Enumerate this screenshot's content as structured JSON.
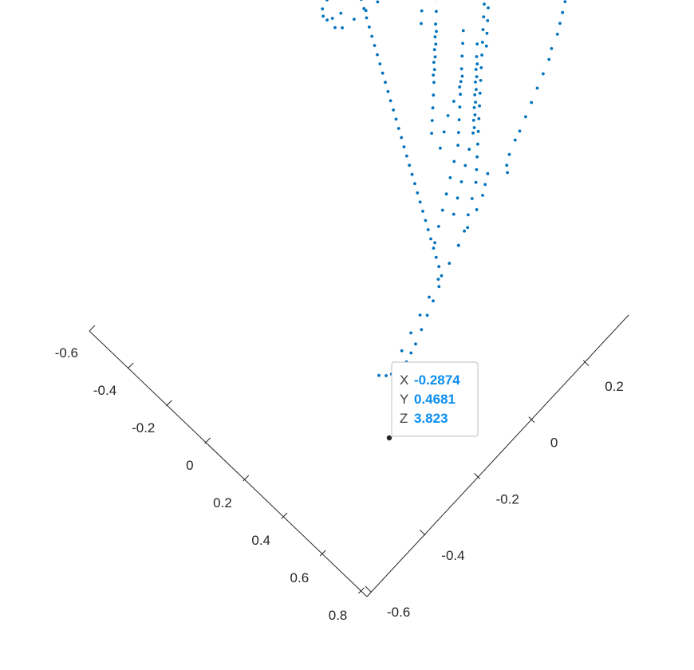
{
  "chart_data": {
    "type": "scatter",
    "projection": "3d",
    "title": "",
    "xlabel": "",
    "ylabel": "",
    "zlabel": "",
    "marker_color": "#0072BD",
    "grid": false,
    "axes": {
      "left_axis": {
        "ticks": [
          "-0.6",
          "-0.4",
          "-0.2",
          "0",
          "0.2",
          "0.4",
          "0.6",
          "0.8"
        ],
        "range": [
          -0.6,
          0.8
        ]
      },
      "right_axis": {
        "ticks": [
          "-0.6",
          "-0.4",
          "-0.2",
          "0",
          "0.2"
        ],
        "range": [
          -0.6,
          0.2
        ]
      }
    },
    "datatip": {
      "rows": [
        {
          "key": "X",
          "value": "-0.2874"
        },
        {
          "key": "Y",
          "value": "0.4681"
        },
        {
          "key": "Z",
          "value": "3.823"
        }
      ],
      "key_color": "#404040",
      "value_color": "#0A8EEF",
      "anchor_color": "#262626"
    },
    "points": [
      [
        0.42,
        0.06
      ],
      [
        0.4,
        0.07
      ],
      [
        0.38,
        0.09
      ],
      [
        0.36,
        0.12
      ],
      [
        0.35,
        0.14
      ],
      [
        0.33,
        0.17
      ],
      [
        0.31,
        0.2
      ],
      [
        0.29,
        0.23
      ],
      [
        0.27,
        0.26
      ],
      [
        0.25,
        0.29
      ],
      [
        0.23,
        0.31
      ],
      [
        0.21,
        0.34
      ],
      [
        0.19,
        0.36
      ],
      [
        0.17,
        0.38
      ],
      [
        0.15,
        0.4
      ],
      [
        0.13,
        0.42
      ],
      [
        0.11,
        0.43
      ],
      [
        0.08,
        0.45
      ],
      [
        0.05,
        0.46
      ],
      [
        0.02,
        0.47
      ],
      [
        -0.01,
        0.48
      ],
      [
        -0.04,
        0.47
      ],
      [
        -0.07,
        0.46
      ],
      [
        -0.1,
        0.44
      ],
      [
        -0.12,
        0.41
      ],
      [
        -0.14,
        0.39
      ],
      [
        -0.16,
        0.37
      ],
      [
        -0.18,
        0.35
      ],
      [
        -0.2,
        0.33
      ],
      [
        -0.22,
        0.31
      ],
      [
        -0.24,
        0.29
      ],
      [
        -0.26,
        0.26
      ],
      [
        -0.28,
        0.24
      ],
      [
        -0.3,
        0.21
      ],
      [
        -0.32,
        0.19
      ],
      [
        -0.33,
        0.16
      ],
      [
        -0.35,
        0.13
      ],
      [
        -0.36,
        0.1
      ],
      [
        -0.37,
        0.07
      ],
      [
        -0.38,
        0.04
      ],
      [
        -0.4,
        0.03
      ],
      [
        0.6,
        -0.4
      ],
      [
        0.58,
        -0.36
      ],
      [
        0.56,
        -0.32
      ],
      [
        0.54,
        -0.28
      ],
      [
        0.52,
        -0.24
      ],
      [
        0.5,
        -0.2
      ],
      [
        0.49,
        -0.16
      ],
      [
        0.47,
        -0.12
      ],
      [
        0.45,
        -0.08
      ],
      [
        0.43,
        -0.04
      ],
      [
        0.41,
        -0.01
      ],
      [
        0.39,
        0.01
      ],
      [
        0.37,
        0.03
      ],
      [
        0.58,
        -0.43
      ],
      [
        0.6,
        -0.42
      ],
      [
        0.61,
        -0.41
      ],
      [
        0.62,
        -0.4
      ],
      [
        0.63,
        -0.39
      ],
      [
        0.62,
        -0.37
      ],
      [
        0.61,
        -0.35
      ],
      [
        0.6,
        -0.33
      ],
      [
        0.58,
        -0.3
      ],
      [
        0.56,
        -0.27
      ],
      [
        0.54,
        -0.24
      ],
      [
        0.52,
        -0.21
      ],
      [
        0.5,
        -0.19
      ],
      [
        0.47,
        -0.18
      ],
      [
        0.44,
        -0.17
      ],
      [
        0.41,
        -0.16
      ],
      [
        0.38,
        -0.15
      ],
      [
        0.35,
        -0.14
      ],
      [
        0.32,
        -0.13
      ],
      [
        0.29,
        -0.12
      ],
      [
        0.26,
        -0.11
      ],
      [
        0.23,
        -0.1
      ],
      [
        0.2,
        -0.09
      ],
      [
        0.17,
        -0.08
      ],
      [
        0.14,
        -0.07
      ],
      [
        0.11,
        -0.06
      ],
      [
        0.08,
        -0.05
      ],
      [
        0.05,
        -0.04
      ],
      [
        0.02,
        -0.03
      ],
      [
        -0.01,
        -0.02
      ],
      [
        -0.04,
        -0.01
      ],
      [
        -0.07,
        0.0
      ],
      [
        -0.1,
        0.01
      ],
      [
        -0.13,
        0.02
      ],
      [
        -0.16,
        0.03
      ],
      [
        -0.19,
        0.04
      ],
      [
        -0.22,
        0.05
      ],
      [
        -0.25,
        0.06
      ],
      [
        -0.28,
        0.07
      ],
      [
        -0.31,
        0.08
      ],
      [
        -0.34,
        0.09
      ],
      [
        -0.37,
        0.1
      ],
      [
        -0.4,
        0.11
      ],
      [
        -0.43,
        0.11
      ],
      [
        -0.46,
        0.11
      ],
      [
        -0.48,
        0.1
      ],
      [
        -0.49,
        0.08
      ],
      [
        -0.49,
        0.06
      ],
      [
        -0.48,
        0.04
      ],
      [
        -0.46,
        0.03
      ],
      [
        -0.44,
        0.03
      ],
      [
        -0.43,
        0.04
      ],
      [
        -0.42,
        0.06
      ],
      [
        0.47,
        -0.12
      ],
      [
        0.45,
        -0.09
      ],
      [
        0.42,
        -0.06
      ],
      [
        0.39,
        -0.03
      ],
      [
        0.36,
        0.0
      ],
      [
        0.33,
        0.02
      ],
      [
        0.3,
        0.04
      ],
      [
        0.27,
        0.06
      ],
      [
        0.24,
        0.08
      ],
      [
        0.21,
        0.1
      ],
      [
        0.18,
        0.12
      ],
      [
        0.15,
        0.14
      ],
      [
        0.12,
        0.16
      ],
      [
        0.09,
        0.18
      ],
      [
        0.06,
        0.2
      ],
      [
        0.03,
        0.22
      ],
      [
        0.0,
        0.24
      ],
      [
        -0.03,
        0.26
      ],
      [
        -0.06,
        0.28
      ],
      [
        -0.09,
        0.3
      ],
      [
        0.4,
        -0.15
      ],
      [
        0.37,
        -0.12
      ],
      [
        0.34,
        -0.09
      ],
      [
        0.31,
        -0.06
      ],
      [
        0.28,
        -0.03
      ],
      [
        0.25,
        0.0
      ],
      [
        0.22,
        0.03
      ],
      [
        0.19,
        0.05
      ],
      [
        0.16,
        0.07
      ],
      [
        0.13,
        0.09
      ],
      [
        0.1,
        0.11
      ],
      [
        0.07,
        0.13
      ],
      [
        0.04,
        0.15
      ],
      [
        0.01,
        0.17
      ],
      [
        -0.02,
        0.19
      ],
      [
        -0.05,
        0.21
      ],
      [
        0.38,
        -0.08
      ],
      [
        0.35,
        -0.05
      ],
      [
        0.32,
        -0.02
      ],
      [
        0.29,
        0.01
      ],
      [
        0.26,
        0.04
      ],
      [
        0.23,
        0.07
      ],
      [
        0.2,
        0.09
      ],
      [
        0.17,
        0.11
      ],
      [
        0.14,
        0.13
      ],
      [
        0.11,
        0.15
      ],
      [
        0.08,
        0.17
      ],
      [
        0.05,
        0.19
      ],
      [
        0.02,
        0.21
      ],
      [
        0.22,
        0.08
      ],
      [
        0.19,
        0.1
      ],
      [
        0.16,
        0.12
      ],
      [
        0.13,
        0.14
      ],
      [
        0.1,
        0.16
      ],
      [
        0.07,
        0.18
      ],
      [
        0.05,
        0.22
      ],
      [
        0.02,
        0.24
      ],
      [
        -0.01,
        0.26
      ],
      [
        -0.04,
        0.28
      ],
      [
        -0.07,
        0.3
      ],
      [
        -0.1,
        0.32
      ],
      [
        -0.13,
        0.34
      ],
      [
        -0.16,
        0.35
      ],
      [
        -0.19,
        0.36
      ],
      [
        -0.22,
        0.38
      ],
      [
        -0.24,
        0.4
      ],
      [
        0.12,
        0.01
      ],
      [
        0.09,
        0.03
      ],
      [
        0.06,
        0.05
      ],
      [
        0.03,
        0.07
      ],
      [
        0.0,
        0.09
      ],
      [
        -0.03,
        0.11
      ],
      [
        -0.06,
        0.13
      ],
      [
        -0.09,
        0.15
      ],
      [
        -0.12,
        0.17
      ],
      [
        -0.02,
        0.1
      ],
      [
        -0.05,
        0.12
      ],
      [
        -0.08,
        0.14
      ],
      [
        -0.11,
        0.16
      ],
      [
        -0.14,
        0.18
      ],
      [
        -0.17,
        0.2
      ],
      [
        -0.2,
        0.22
      ],
      [
        -0.23,
        0.24
      ],
      [
        -0.25,
        0.27
      ],
      [
        -0.18,
        0.16
      ],
      [
        -0.21,
        0.18
      ],
      [
        -0.24,
        0.2
      ],
      [
        -0.27,
        0.22
      ],
      [
        -0.3,
        0.24
      ],
      [
        -0.33,
        0.26
      ],
      [
        0.18,
        0.0
      ],
      [
        0.15,
        0.03
      ],
      [
        0.12,
        0.06
      ],
      [
        0.1,
        0.09
      ],
      [
        0.08,
        0.12
      ],
      [
        0.06,
        0.14
      ],
      [
        -0.28,
        0.18
      ],
      [
        -0.26,
        0.21
      ],
      [
        -0.23,
        0.24
      ],
      [
        -0.2,
        0.27
      ],
      [
        -0.17,
        0.29
      ],
      [
        -0.14,
        0.31
      ]
    ],
    "highlight_point": [
      0.423,
      -0.11
    ]
  }
}
